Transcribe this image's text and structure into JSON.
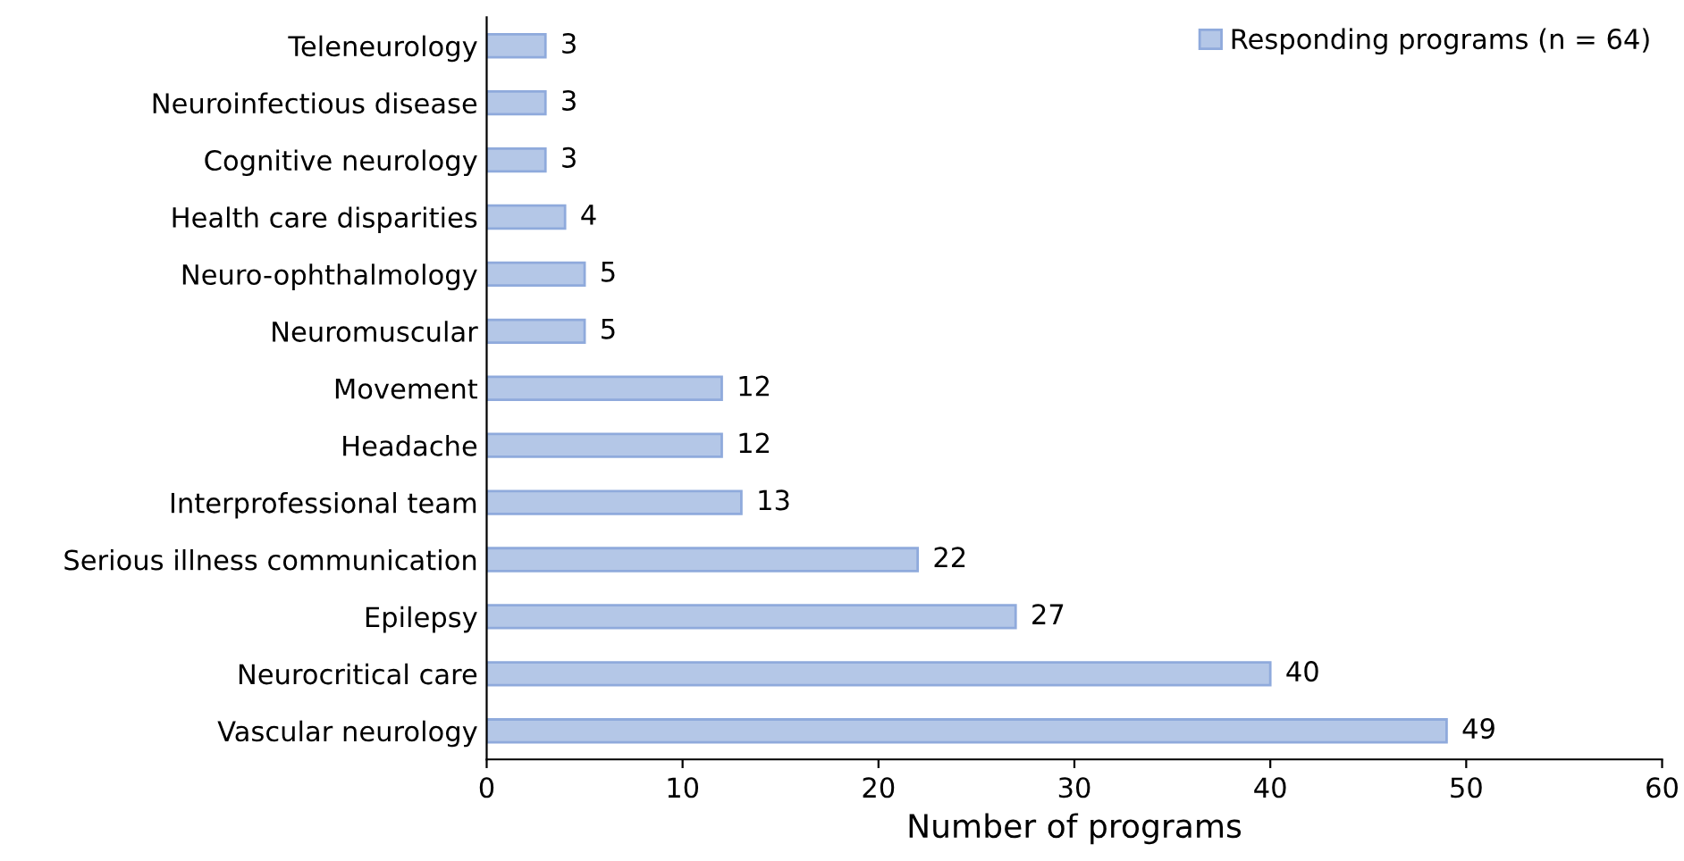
{
  "chart_data": {
    "type": "bar",
    "orientation": "horizontal",
    "categories": [
      "Teleneurology",
      "Neuroinfectious disease",
      "Cognitive neurology",
      "Health care disparities",
      "Neuro-ophthalmology",
      "Neuromuscular",
      "Movement",
      "Headache",
      "Interprofessional team",
      "Serious illness communication",
      "Epilepsy",
      "Neurocritical care",
      "Vascular neurology"
    ],
    "series": [
      {
        "name": "Responding programs (n = 64)",
        "color": "#b4c7e7",
        "values": [
          3,
          3,
          3,
          4,
          5,
          5,
          12,
          12,
          13,
          22,
          27,
          40,
          49
        ]
      }
    ],
    "xlabel": "Number of programs",
    "xlim": [
      0,
      60
    ],
    "xticks": [
      0,
      10,
      20,
      30,
      40,
      50,
      60
    ],
    "data_labels": true,
    "legend": "top right",
    "grid": false
  }
}
